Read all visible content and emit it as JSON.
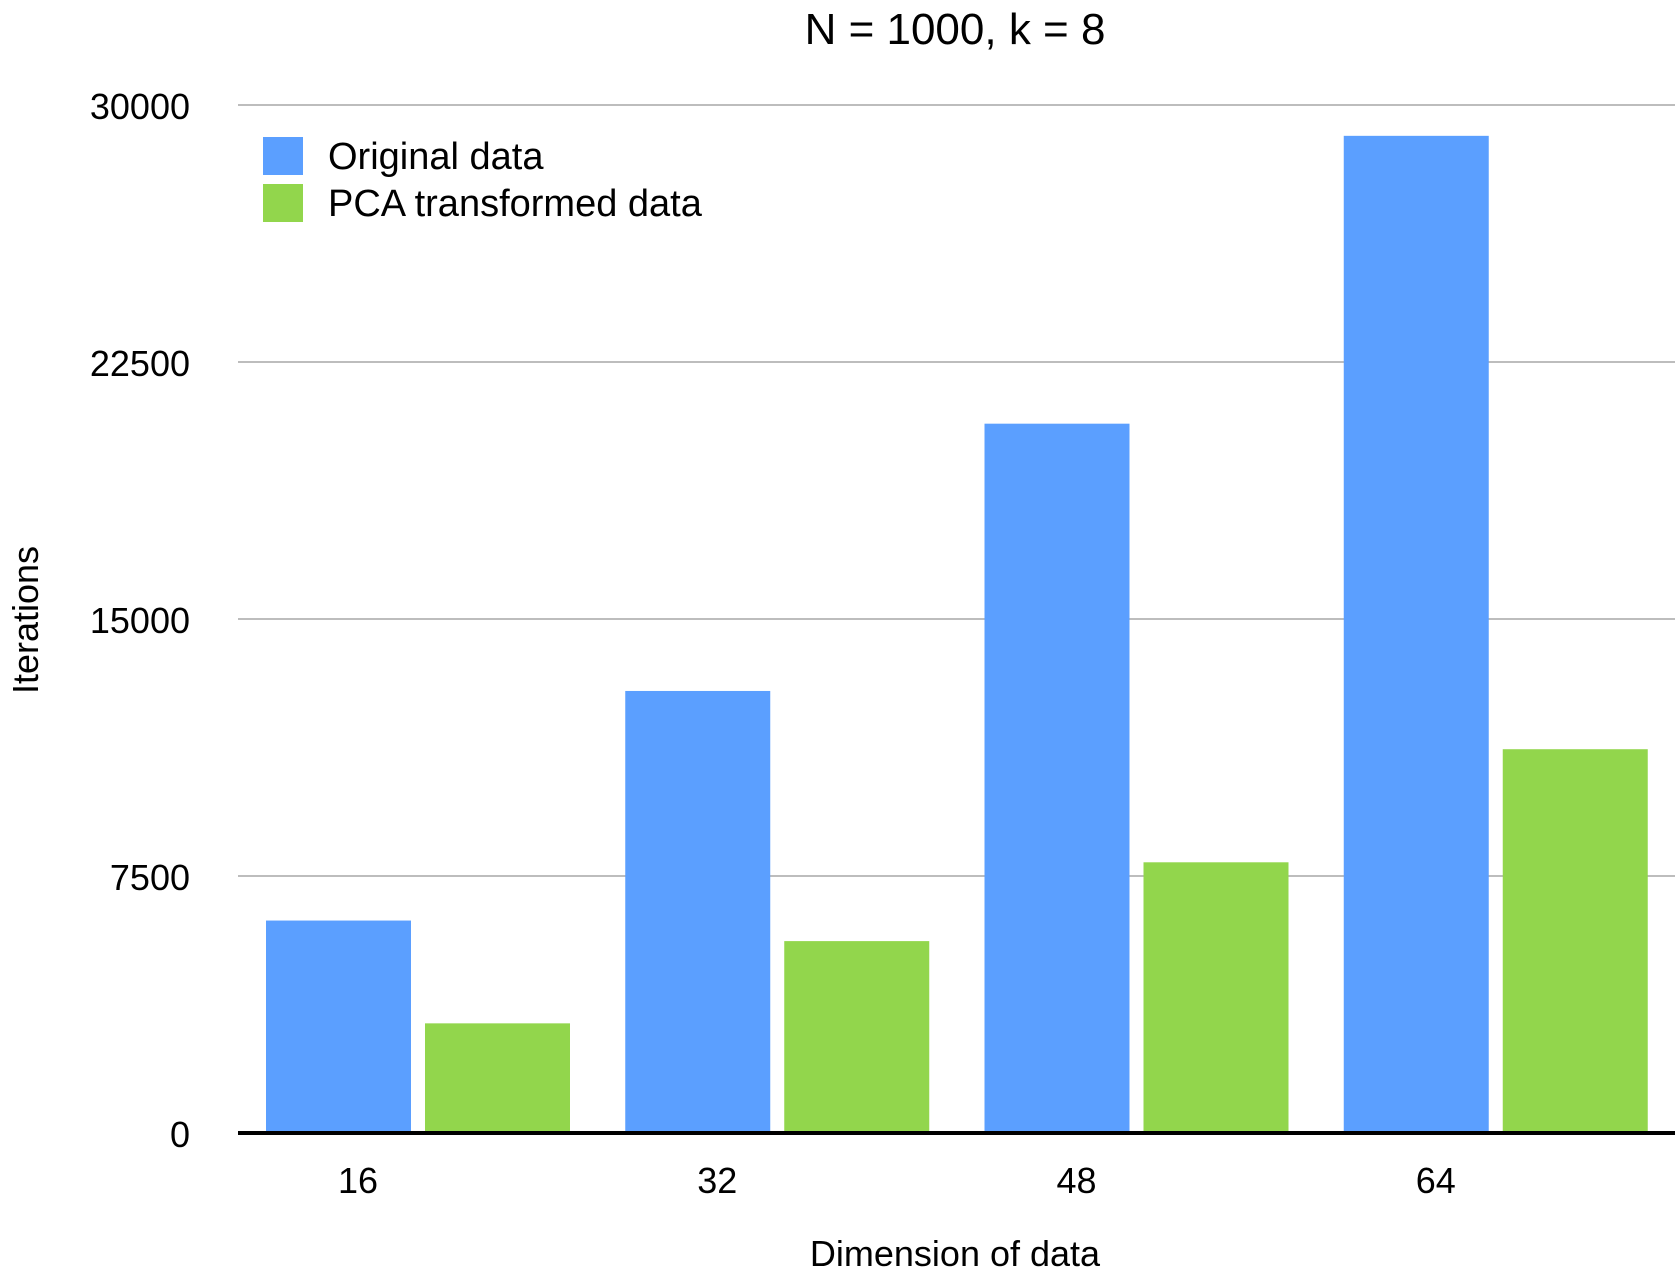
{
  "chart_data": {
    "type": "bar",
    "title": "N = 1000, k = 8",
    "xlabel": "Dimension of data",
    "ylabel": "Iterations",
    "categories": [
      "16",
      "32",
      "48",
      "64"
    ],
    "ylim": [
      0,
      30000
    ],
    "yticks": [
      0,
      7500,
      15000,
      22500,
      30000
    ],
    "ytick_labels": [
      "0",
      "7500",
      "15000",
      "22500",
      "30000"
    ],
    "grid": true,
    "legend_position": "top-left",
    "series": [
      {
        "name": "Original data",
        "color": "#5B9FFF",
        "values": [
          6200,
          12900,
          20700,
          29100
        ]
      },
      {
        "name": "PCA transformed data",
        "color": "#92D64C",
        "values": [
          3200,
          5600,
          7900,
          11200
        ]
      }
    ]
  }
}
